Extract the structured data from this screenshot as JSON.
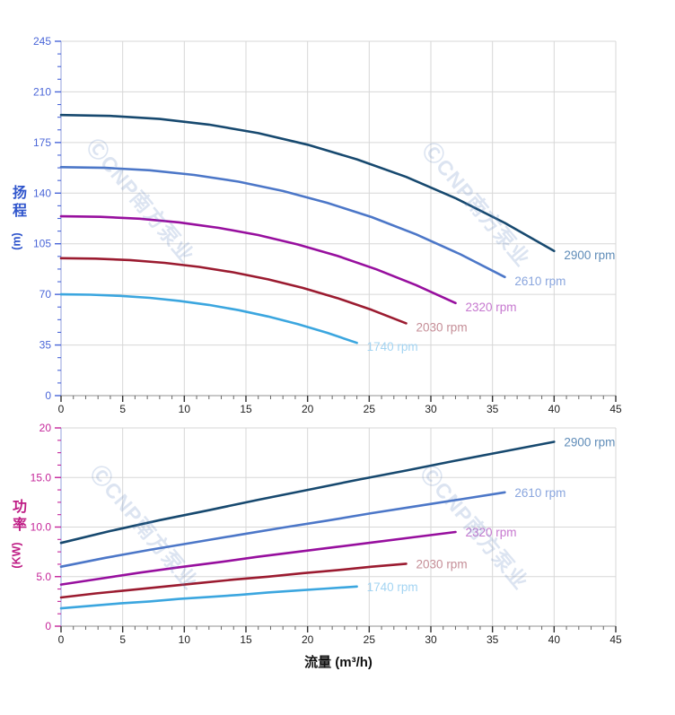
{
  "watermark": {
    "text": "ⒸCNP南方泵业"
  },
  "axes": {
    "head": {
      "title_cjk": "扬程",
      "title_unit": "(m)",
      "axis_color": "#2f55cc"
    },
    "power": {
      "title_cjk": "功率",
      "title_unit": "(KW)",
      "axis_color": "#bf1d85"
    },
    "x": {
      "title": "流量 (m³/h)"
    }
  },
  "colors": {
    "grid": "#d7d7d7",
    "y_spine": "#b3bce6",
    "x_spine": "#a6a6a6",
    "x_tick": "#333333",
    "x_tick_label": "#1f1f1f"
  },
  "chart_data": [
    {
      "id": "head-vs-flow",
      "type": "line",
      "title": "",
      "xlabel": "流量 (m³/h)",
      "ylabel": "扬程 (m)",
      "xlim": [
        0,
        45
      ],
      "ylim": [
        0,
        245
      ],
      "grid": true,
      "legend_position": "curve-end-labels",
      "x_major_ticks": [
        0,
        5,
        10,
        15,
        20,
        25,
        30,
        35,
        40,
        45
      ],
      "x_tick_labels": [
        "0",
        "5",
        "10",
        "15",
        "20",
        "25",
        "30",
        "35",
        "40",
        "45"
      ],
      "x_minor_step": 1,
      "y_major_ticks": [
        0,
        35,
        70,
        105,
        140,
        175,
        210,
        245
      ],
      "y_tick_labels": [
        "0",
        "35",
        "70",
        "105",
        "140",
        "175",
        "210",
        "245"
      ],
      "y_minor_divisions": 4,
      "tick_label_color": "#4a66d8",
      "series": [
        {
          "name": "2900 rpm",
          "color": "#17496f",
          "label_color": "#5f8cb8",
          "x": [
            0,
            4,
            8,
            12,
            16,
            20,
            24,
            28,
            32,
            36,
            40
          ],
          "y": [
            194,
            193.4,
            191.3,
            187.4,
            181.5,
            173.5,
            163.4,
            151.2,
            136.5,
            119.4,
            100
          ]
        },
        {
          "name": "2610 rpm",
          "color": "#4c77c8",
          "label_color": "#8aa6de",
          "x": [
            0,
            3.6,
            7.2,
            10.8,
            14.4,
            18,
            21.6,
            25.2,
            28.8,
            32.4,
            36
          ],
          "y": [
            158,
            157.5,
            155.8,
            152.6,
            147.9,
            141.5,
            133.3,
            123.4,
            111.5,
            97.7,
            82
          ]
        },
        {
          "name": "2320 rpm",
          "color": "#970f9e",
          "label_color": "#c678cf",
          "x": [
            0,
            3.2,
            6.4,
            9.6,
            12.8,
            16,
            19.2,
            22.4,
            25.6,
            28.8,
            32
          ],
          "y": [
            124,
            123.6,
            122.3,
            119.8,
            116,
            111,
            104.5,
            96.7,
            87.3,
            76.4,
            64
          ]
        },
        {
          "name": "2030 rpm",
          "color": "#9b1b30",
          "label_color": "#c58e97",
          "x": [
            0,
            2.8,
            5.6,
            8.4,
            11.2,
            14,
            16.8,
            19.6,
            22.4,
            25.2,
            28
          ],
          "y": [
            95,
            94.7,
            93.7,
            91.8,
            89,
            85.2,
            80.4,
            74.5,
            67.5,
            59.3,
            50
          ]
        },
        {
          "name": "1740 rpm",
          "color": "#3ba6df",
          "label_color": "#a3d4f2",
          "x": [
            0,
            2.4,
            4.8,
            7.2,
            9.6,
            12,
            14.4,
            16.8,
            19.2,
            21.6,
            24
          ],
          "y": [
            70,
            69.8,
            69,
            67.6,
            65.5,
            62.7,
            59.1,
            54.7,
            49.5,
            43.4,
            36.5
          ]
        }
      ]
    },
    {
      "id": "power-vs-flow",
      "type": "line",
      "title": "",
      "xlabel": "流量 (m³/h)",
      "ylabel": "功率 (KW)",
      "xlim": [
        0,
        45
      ],
      "ylim": [
        0,
        20
      ],
      "grid": true,
      "legend_position": "curve-end-labels",
      "x_major_ticks": [
        0,
        5,
        10,
        15,
        20,
        25,
        30,
        35,
        40,
        45
      ],
      "x_tick_labels": [
        "0",
        "5",
        "10",
        "15",
        "20",
        "25",
        "30",
        "35",
        "40",
        "45"
      ],
      "x_minor_step": 1,
      "y_major_ticks": [
        0,
        5,
        10,
        15,
        20
      ],
      "y_tick_labels": [
        "0",
        "5.0",
        "10.0",
        "15.0",
        "20"
      ],
      "y_minor_divisions": 4,
      "tick_label_color": "#c5269a",
      "series": [
        {
          "name": "2900 rpm",
          "color": "#17496f",
          "label_color": "#5f8cb8",
          "x": [
            0,
            4,
            8,
            12,
            16,
            20,
            24,
            28,
            32,
            36,
            40
          ],
          "y": [
            8.4,
            9.6,
            10.7,
            11.7,
            12.75,
            13.75,
            14.75,
            15.7,
            16.7,
            17.65,
            18.6
          ]
        },
        {
          "name": "2610 rpm",
          "color": "#4c77c8",
          "label_color": "#8aa6de",
          "x": [
            0,
            3.6,
            7.2,
            10.8,
            14.4,
            18,
            21.6,
            25.2,
            28.8,
            32.4,
            36
          ],
          "y": [
            6,
            6.9,
            7.7,
            8.45,
            9.2,
            9.95,
            10.65,
            11.4,
            12.1,
            12.8,
            13.5
          ]
        },
        {
          "name": "2320 rpm",
          "color": "#970f9e",
          "label_color": "#c678cf",
          "x": [
            0,
            3.2,
            6.4,
            9.6,
            12.8,
            16,
            19.2,
            22.4,
            25.6,
            28.8,
            32
          ],
          "y": [
            4.2,
            4.8,
            5.4,
            5.95,
            6.45,
            7,
            7.5,
            8,
            8.5,
            9,
            9.5
          ]
        },
        {
          "name": "2030 rpm",
          "color": "#9b1b30",
          "label_color": "#c58e97",
          "x": [
            0,
            2.8,
            5.6,
            8.4,
            11.2,
            14,
            16.8,
            19.6,
            22.4,
            25.2,
            28
          ],
          "y": [
            2.9,
            3.3,
            3.65,
            4,
            4.35,
            4.7,
            5,
            5.35,
            5.65,
            6,
            6.3
          ]
        },
        {
          "name": "1740 rpm",
          "color": "#3ba6df",
          "label_color": "#a3d4f2",
          "x": [
            0,
            2.4,
            4.8,
            7.2,
            9.6,
            12,
            14.4,
            16.8,
            19.2,
            21.6,
            24
          ],
          "y": [
            1.8,
            2.05,
            2.3,
            2.5,
            2.75,
            2.95,
            3.15,
            3.4,
            3.6,
            3.8,
            4
          ]
        }
      ]
    }
  ]
}
